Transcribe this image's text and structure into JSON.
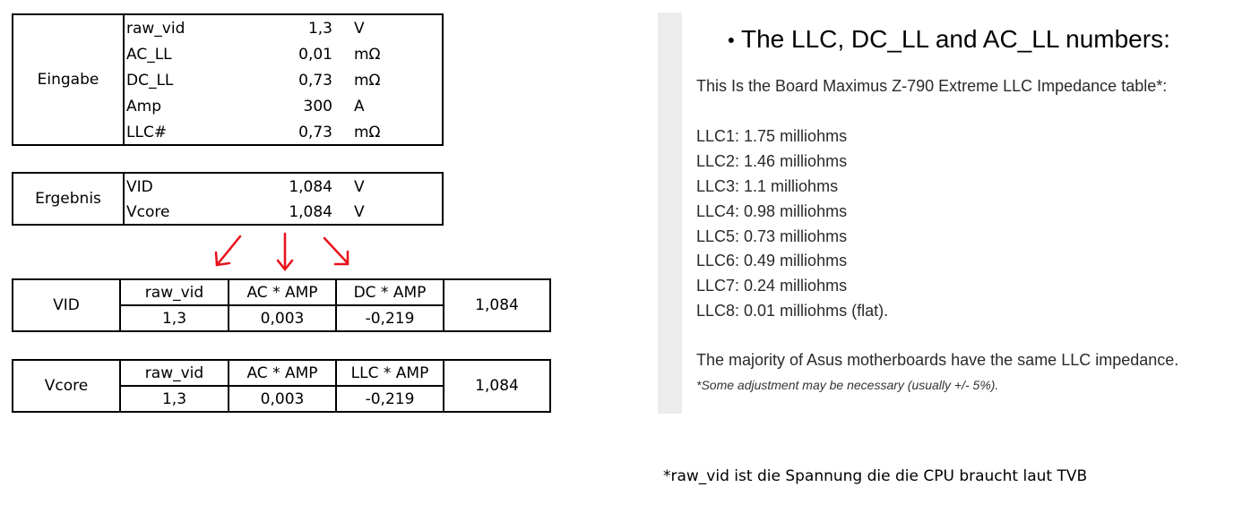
{
  "input_table": {
    "label": "Eingabe",
    "rows": [
      {
        "name": "raw_vid",
        "value": "1,3",
        "unit": "V"
      },
      {
        "name": "AC_LL",
        "value": "0,01",
        "unit": "mΩ"
      },
      {
        "name": "DC_LL",
        "value": "0,73",
        "unit": "mΩ"
      },
      {
        "name": "Amp",
        "value": "300",
        "unit": "A"
      },
      {
        "name": "LLC#",
        "value": "0,73",
        "unit": "mΩ"
      }
    ]
  },
  "result_table": {
    "label": "Ergebnis",
    "rows": [
      {
        "name": "VID",
        "value": "1,084",
        "unit": "V"
      },
      {
        "name": "Vcore",
        "value": "1,084",
        "unit": "V"
      }
    ]
  },
  "vid_table": {
    "label": "VID",
    "headers": [
      "raw_vid",
      "AC * AMP",
      "DC * AMP"
    ],
    "values": [
      "1,3",
      "0,003",
      "-0,219"
    ],
    "result": "1,084"
  },
  "vcore_table": {
    "label": "Vcore",
    "headers": [
      "raw_vid",
      "AC * AMP",
      "LLC * AMP"
    ],
    "values": [
      "1,3",
      "0,003",
      "-0,219"
    ],
    "result": "1,084"
  },
  "info_panel": {
    "title_bullet": "•",
    "title": "The LLC, DC_LL and AC_LL numbers:",
    "intro": "This Is the Board Maximus Z-790 Extreme LLC Impedance table*:",
    "llc_list": [
      "LLC1: 1.75 milliohms",
      "LLC2: 1.46 milliohms",
      "LLC3: 1.1 milliohms",
      "LLC4: 0.98 milliohms",
      "LLC5: 0.73 milliohms",
      "LLC6: 0.49 milliohms",
      "LLC7: 0.24 milliohms",
      "LLC8: 0.01 milliohms (flat)."
    ],
    "majority": "The majority of Asus motherboards have the same LLC impedance.",
    "adjustment": "*Some adjustment may be necessary (usually +/- 5%)."
  },
  "footnote": "*raw_vid ist die Spannung die die CPU braucht laut TVB",
  "colors": {
    "arrow": "#e8101a",
    "panel_bar": "#ececec"
  }
}
